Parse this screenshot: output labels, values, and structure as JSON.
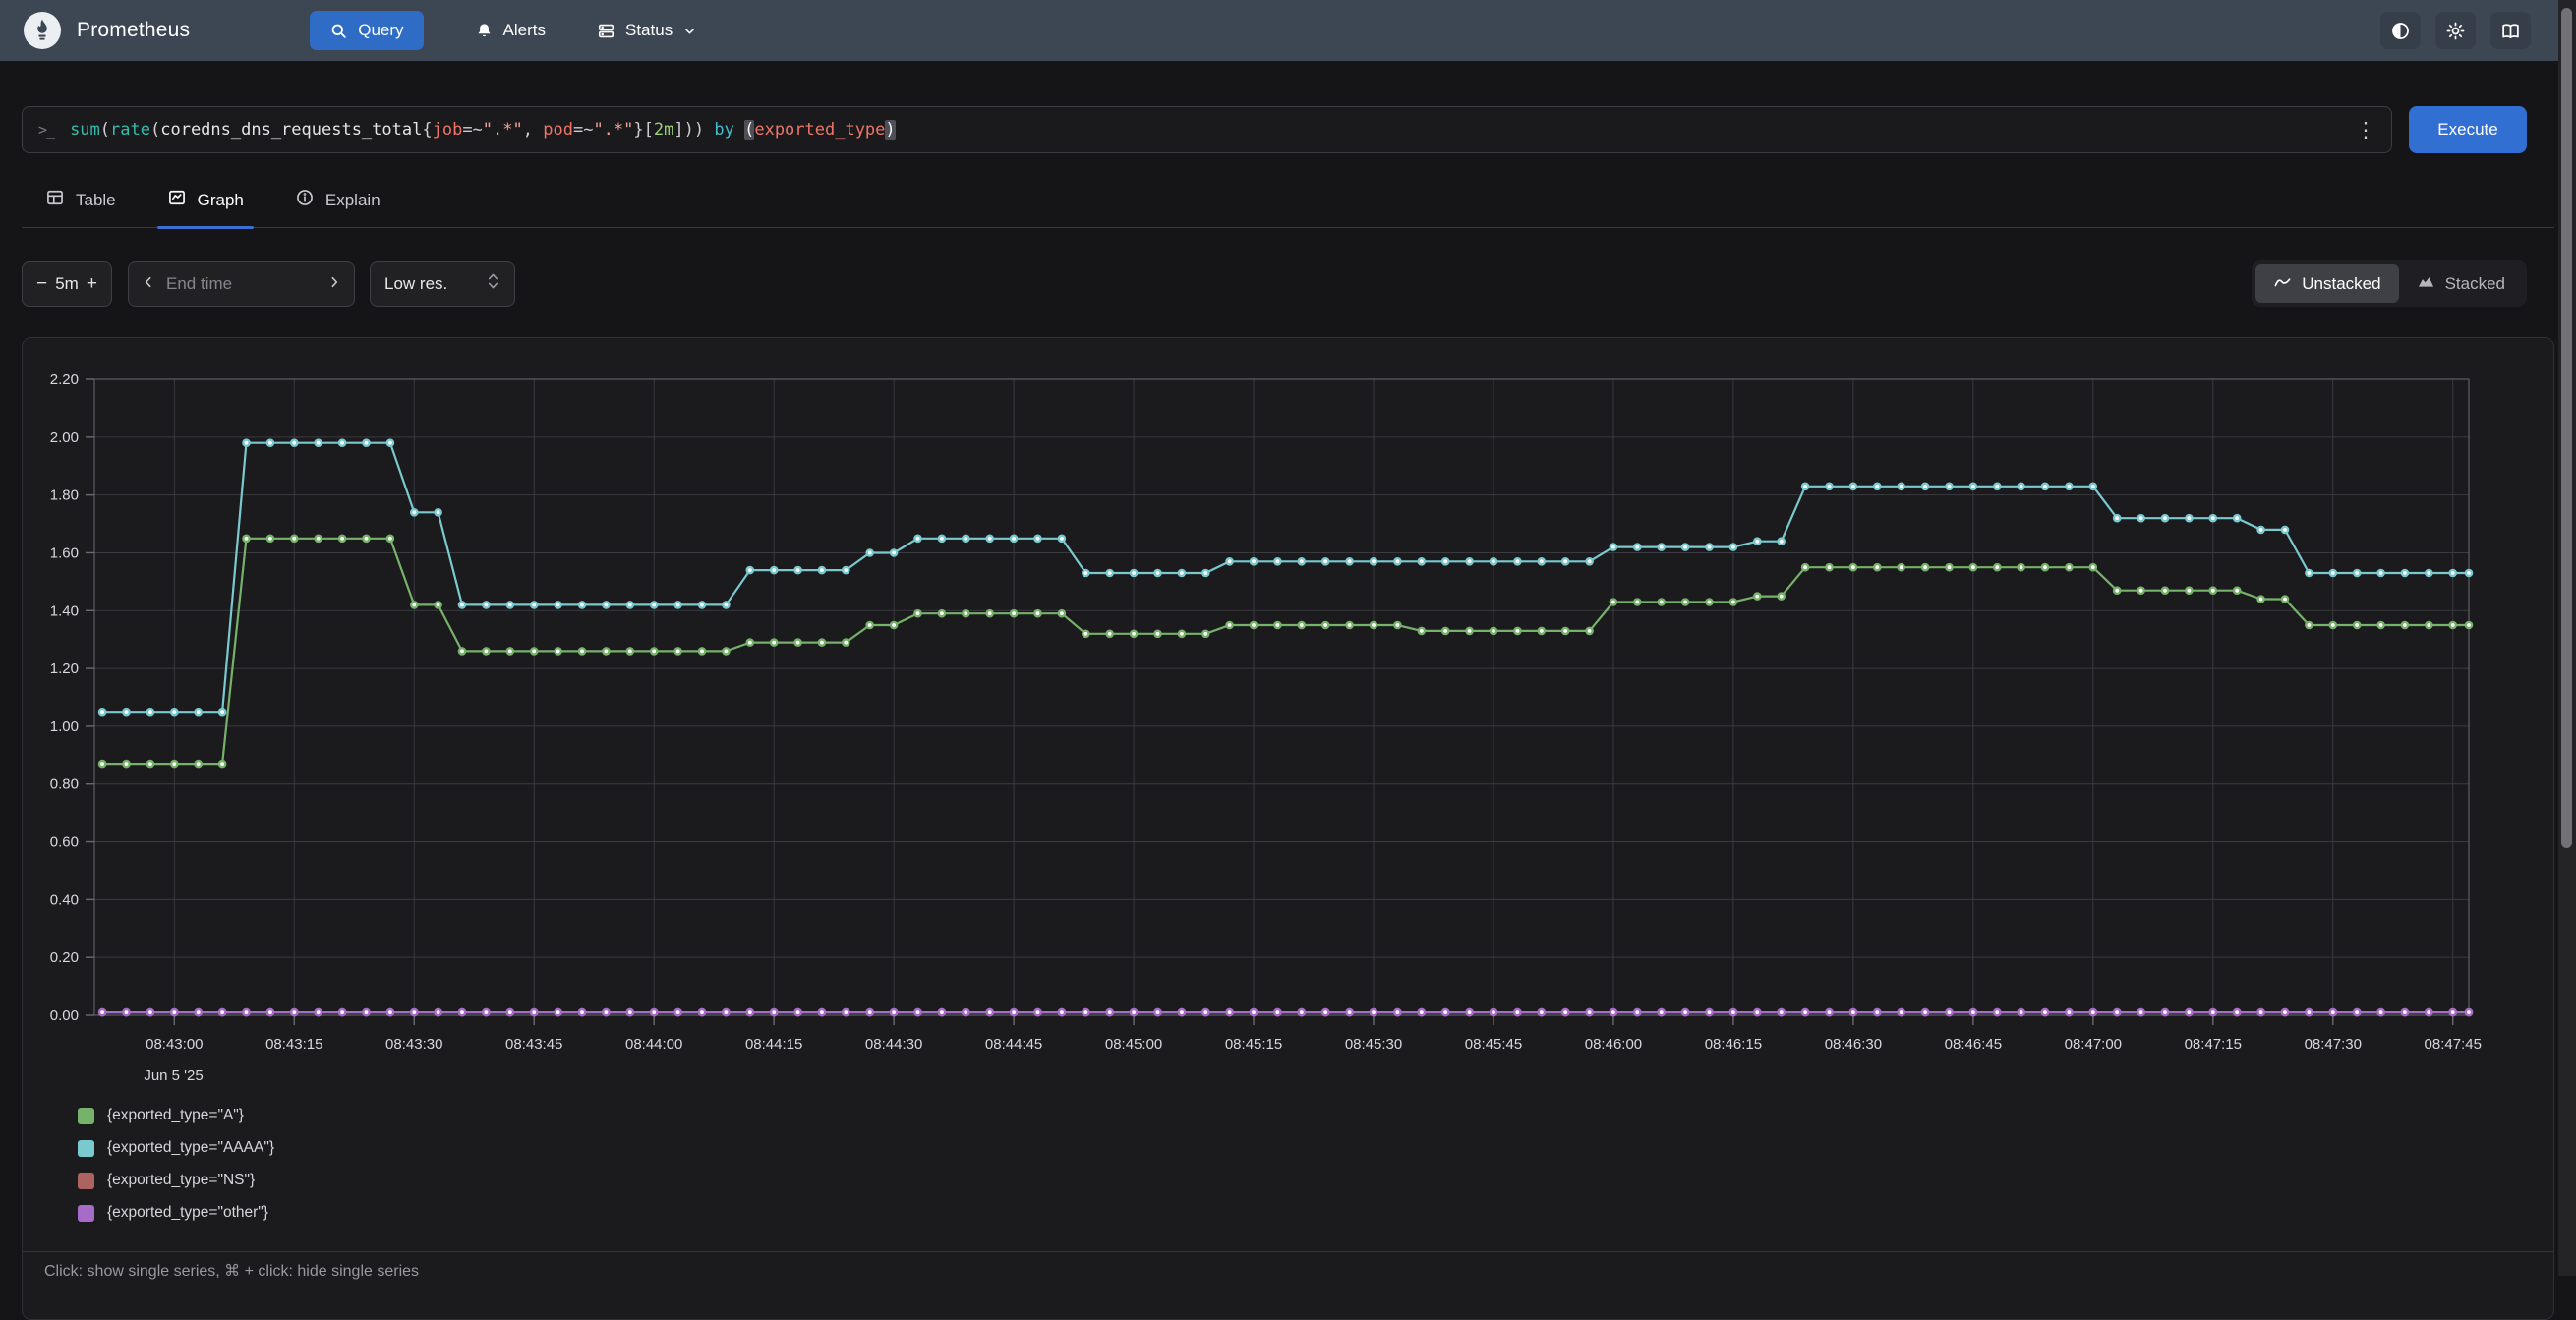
{
  "navbar": {
    "brand": "Prometheus",
    "items": [
      {
        "label": "Query",
        "active": true
      },
      {
        "label": "Alerts"
      },
      {
        "label": "Status"
      }
    ]
  },
  "query": {
    "tokens": [
      {
        "t": "sum",
        "c": "fn"
      },
      {
        "t": "(",
        "c": "p"
      },
      {
        "t": "rate",
        "c": "fn"
      },
      {
        "t": "(",
        "c": "p"
      },
      {
        "t": "coredns_dns_requests_total",
        "c": "m"
      },
      {
        "t": "{",
        "c": "p"
      },
      {
        "t": "job",
        "c": "lbl"
      },
      {
        "t": "=~",
        "c": "op"
      },
      {
        "t": "\".*\"",
        "c": "str"
      },
      {
        "t": ", ",
        "c": "p"
      },
      {
        "t": "pod",
        "c": "lbl"
      },
      {
        "t": "=~",
        "c": "op"
      },
      {
        "t": "\".*\"",
        "c": "str"
      },
      {
        "t": "}",
        "c": "p"
      },
      {
        "t": "[",
        "c": "p"
      },
      {
        "t": "2m",
        "c": "num"
      },
      {
        "t": "]",
        "c": "p"
      },
      {
        "t": "))",
        "c": "p"
      },
      {
        "t": " ",
        "c": "p"
      },
      {
        "t": "by",
        "c": "kw"
      },
      {
        "t": " ",
        "c": "p"
      },
      {
        "t": "(",
        "c": "hl"
      },
      {
        "t": "exported_type",
        "c": "lbl"
      },
      {
        "t": ")",
        "c": "hl"
      }
    ],
    "execute_label": "Execute"
  },
  "tabs": [
    {
      "label": "Table",
      "icon": "table-icon",
      "active": false
    },
    {
      "label": "Graph",
      "icon": "graph-icon",
      "active": true
    },
    {
      "label": "Explain",
      "icon": "info-icon",
      "active": false
    }
  ],
  "controls": {
    "range": "5m",
    "decrease": "−",
    "increase": "+",
    "end_time_placeholder": "End time",
    "resolution": "Low res.",
    "view_modes": [
      {
        "label": "Unstacked",
        "active": true
      },
      {
        "label": "Stacked",
        "active": false
      }
    ]
  },
  "chart_data": {
    "type": "line",
    "title": "",
    "xlabel": "",
    "ylabel": "",
    "ylim": [
      0,
      2.2
    ],
    "grid": true,
    "legend_position": "bottom-left",
    "sample_interval_seconds": 3,
    "t_domain": [
      -10,
      287
    ],
    "y_ticks": [
      "0.00",
      "0.20",
      "0.40",
      "0.60",
      "0.80",
      "1.00",
      "1.20",
      "1.40",
      "1.60",
      "1.80",
      "2.00",
      "2.20"
    ],
    "x_ticks": [
      {
        "t": 0,
        "label": "08:43:00"
      },
      {
        "t": 15,
        "label": "08:43:15"
      },
      {
        "t": 30,
        "label": "08:43:30"
      },
      {
        "t": 45,
        "label": "08:43:45"
      },
      {
        "t": 60,
        "label": "08:44:00"
      },
      {
        "t": 75,
        "label": "08:44:15"
      },
      {
        "t": 90,
        "label": "08:44:30"
      },
      {
        "t": 105,
        "label": "08:44:45"
      },
      {
        "t": 120,
        "label": "08:45:00"
      },
      {
        "t": 135,
        "label": "08:45:15"
      },
      {
        "t": 150,
        "label": "08:45:30"
      },
      {
        "t": 165,
        "label": "08:45:45"
      },
      {
        "t": 180,
        "label": "08:46:00"
      },
      {
        "t": 195,
        "label": "08:46:15"
      },
      {
        "t": 210,
        "label": "08:46:30"
      },
      {
        "t": 225,
        "label": "08:46:45"
      },
      {
        "t": 240,
        "label": "08:47:00"
      },
      {
        "t": 255,
        "label": "08:47:15"
      },
      {
        "t": 270,
        "label": "08:47:30"
      },
      {
        "t": 285,
        "label": "08:47:45"
      }
    ],
    "x_date_label": "Jun 5 '25",
    "series": [
      {
        "name": "{exported_type=\"A\"}",
        "color": "#76b26a",
        "segments": [
          [
            -9,
            6,
            0.87
          ],
          [
            9,
            27,
            1.65
          ],
          [
            30,
            33,
            1.42
          ],
          [
            36,
            69,
            1.26
          ],
          [
            72,
            84,
            1.29
          ],
          [
            87,
            90,
            1.35
          ],
          [
            93,
            111,
            1.39
          ],
          [
            114,
            129,
            1.32
          ],
          [
            132,
            153,
            1.35
          ],
          [
            156,
            177,
            1.33
          ],
          [
            180,
            195,
            1.43
          ],
          [
            198,
            201,
            1.45
          ],
          [
            204,
            240,
            1.55
          ],
          [
            243,
            258,
            1.47
          ],
          [
            261,
            264,
            1.44
          ],
          [
            267,
            287,
            1.35
          ]
        ]
      },
      {
        "name": "{exported_type=\"AAAA\"}",
        "color": "#79c9cf",
        "segments": [
          [
            -9,
            6,
            1.05
          ],
          [
            9,
            27,
            1.98
          ],
          [
            30,
            33,
            1.74
          ],
          [
            36,
            69,
            1.42
          ],
          [
            72,
            84,
            1.54
          ],
          [
            87,
            90,
            1.6
          ],
          [
            93,
            111,
            1.65
          ],
          [
            114,
            129,
            1.53
          ],
          [
            132,
            177,
            1.57
          ],
          [
            180,
            195,
            1.62
          ],
          [
            198,
            201,
            1.64
          ],
          [
            204,
            240,
            1.83
          ],
          [
            243,
            258,
            1.72
          ],
          [
            261,
            264,
            1.68
          ],
          [
            267,
            287,
            1.53
          ]
        ]
      },
      {
        "name": "{exported_type=\"NS\"}",
        "color": "#ad6461",
        "segments": [
          [
            -9,
            287,
            0.01
          ]
        ]
      },
      {
        "name": "{exported_type=\"other\"}",
        "color": "#a76bc8",
        "segments": [
          [
            -9,
            287,
            0.01
          ]
        ]
      }
    ],
    "legend_hint": "Click: show single series, ⌘ + click: hide single series"
  }
}
